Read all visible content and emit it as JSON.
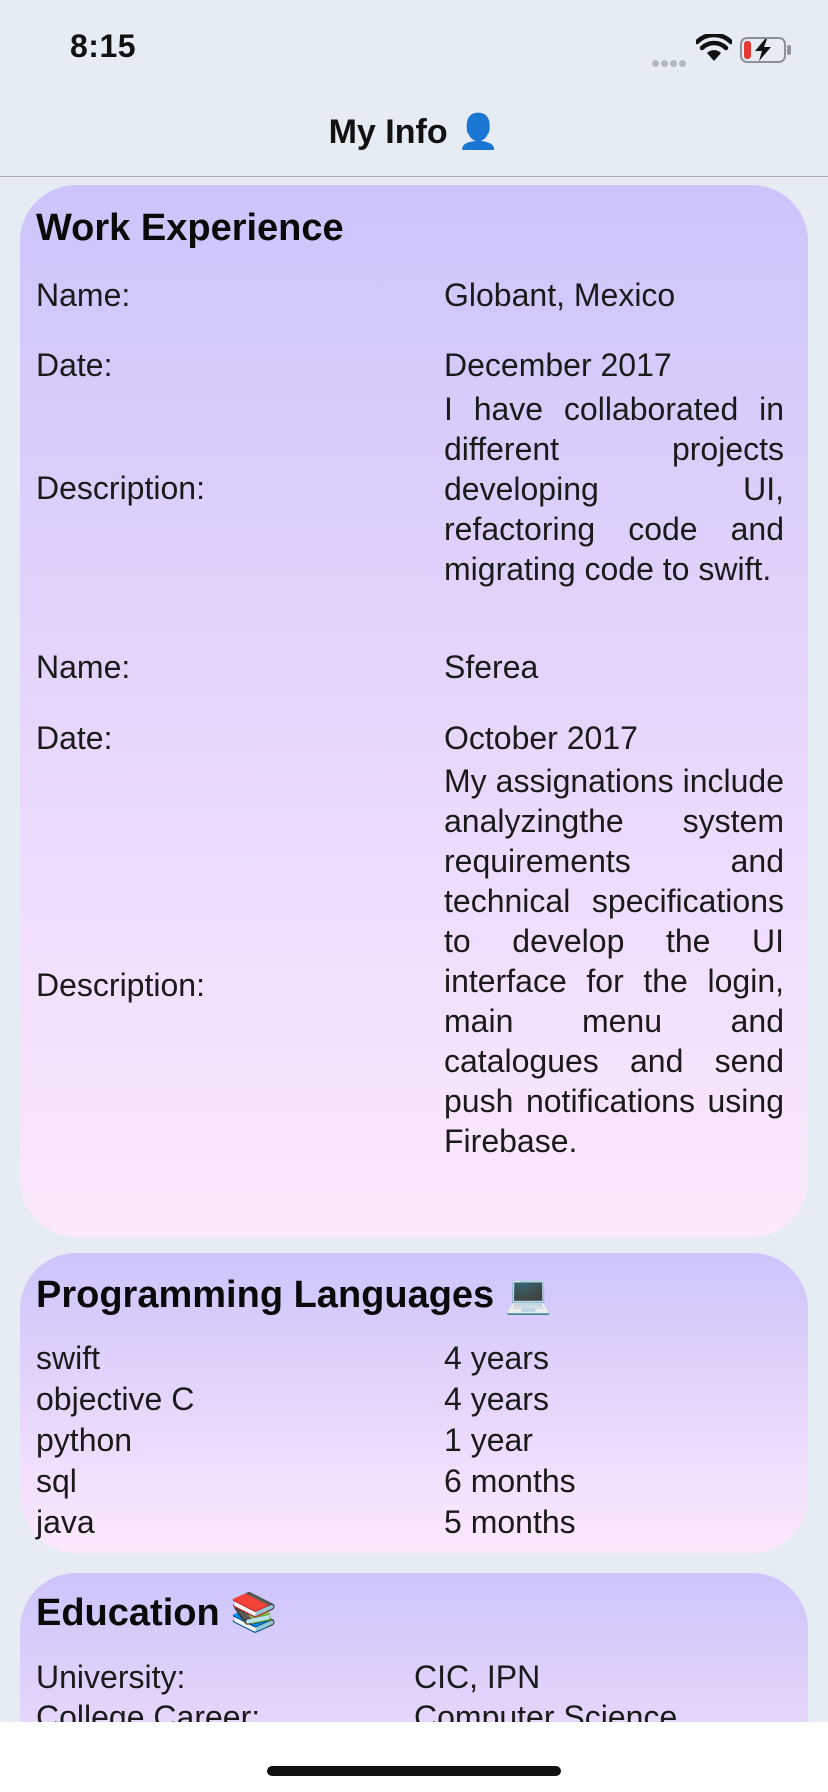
{
  "status_bar": {
    "time": "8:15",
    "signal_icon": "signal-dots-icon",
    "wifi_icon": "wifi-icon",
    "battery_icon": "battery-low-charging-icon",
    "battery_level": 0.15
  },
  "nav": {
    "title": "My Info 👤"
  },
  "work": {
    "title": "Work Experience",
    "labels": {
      "name": "Name:",
      "date": "Date:",
      "description": "Description:"
    },
    "jobs": [
      {
        "name": "Globant, Mexico",
        "date": "December 2017",
        "description": "I have collaborated in different projects developing UI, refactoring code and migrating code to swift."
      },
      {
        "name": "Sferea",
        "date": "October 2017",
        "description": "My assignations include analyzingthe system requirements and technical specifications to develop the UI interface for the login, main menu and catalogues and send push notifications using Firebase."
      }
    ]
  },
  "languages": {
    "title": "Programming Languages 💻",
    "items": [
      {
        "name": "swift",
        "duration": "4 years"
      },
      {
        "name": "objective C",
        "duration": "4 years"
      },
      {
        "name": "python",
        "duration": "1 year"
      },
      {
        "name": "sql",
        "duration": "6 months"
      },
      {
        "name": "java",
        "duration": "5 months"
      }
    ]
  },
  "education": {
    "title": "Education 📚",
    "university_label": "University:",
    "university_value": "CIC, IPN",
    "career_label": "College Career:",
    "career_value": "Computer Science"
  },
  "colors": {
    "background": "#e6ecf4",
    "card_top": "#cdc4fb",
    "card_bottom": "#fde9fd"
  }
}
